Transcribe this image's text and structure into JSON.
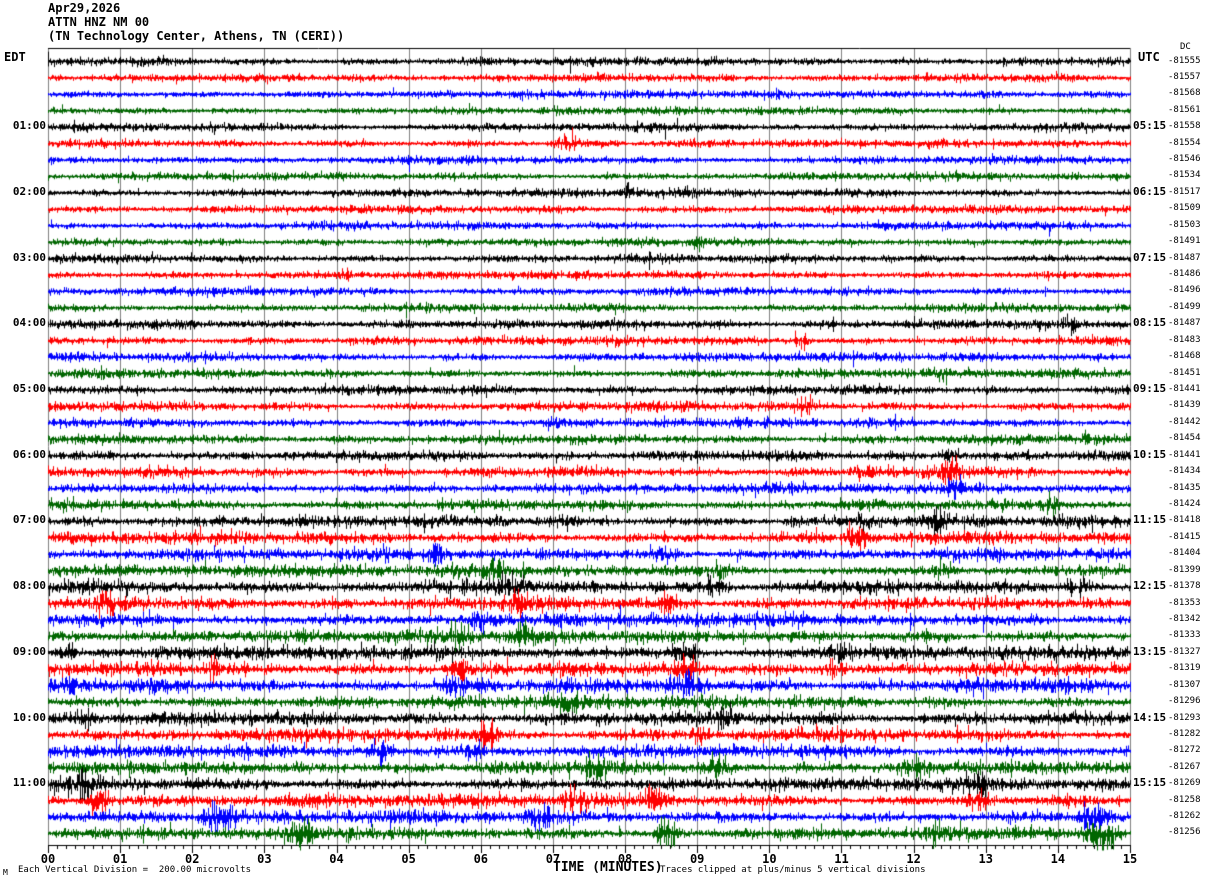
{
  "header": {
    "date": "Apr29,2026",
    "station": "ATTN HNZ NM 00",
    "location": "(TN Technology Center, Athens, TN (CERI))"
  },
  "footer": {
    "corner_mark": "M",
    "scale_note": "Each Vertical Division =  200.00 microvolts",
    "clip_note": "Traces clipped at plus/minus 5 vertical divisions"
  },
  "chart_data": {
    "type": "line",
    "subtype": "seismogram_helicorder",
    "title": "ATTN HNZ NM 00 helicorder record, Apr29,2026",
    "x_axis": {
      "label": "TIME (MINUTES)",
      "range": [
        0,
        15
      ],
      "major_tick_every_minutes": 1,
      "minor_divisions_per_minute": 8,
      "tick_labels": [
        "00",
        "01",
        "02",
        "03",
        "04",
        "05",
        "06",
        "07",
        "08",
        "09",
        "10",
        "11",
        "12",
        "13",
        "14",
        "15"
      ]
    },
    "y_axis_left": {
      "label": "EDT",
      "rows_per_hour": 4,
      "minutes_per_row": 15,
      "hour_labels": [
        "01:00",
        "02:00",
        "03:00",
        "04:00",
        "05:00",
        "06:00",
        "07:00",
        "08:00",
        "09:00",
        "10:00",
        "11:00"
      ]
    },
    "y_axis_right": {
      "label": "UTC",
      "dc_header": "DC",
      "hour_labels": [
        "05:15",
        "06:15",
        "07:15",
        "08:15",
        "09:15",
        "10:15",
        "11:15",
        "12:15",
        "13:15",
        "14:15",
        "15:15"
      ]
    },
    "grid": {
      "on": true,
      "color": "#808080",
      "border_color": "#000000"
    },
    "trace_color_cycle": [
      "#000000",
      "#ff0000",
      "#0000ff",
      "#006600"
    ],
    "microvolts_per_division": "200.00",
    "clip_divisions": 5,
    "rows": [
      {
        "edt": "",
        "utc": "",
        "dc": "-81555"
      },
      {
        "edt": "",
        "utc": "",
        "dc": "-81557"
      },
      {
        "edt": "",
        "utc": "",
        "dc": "-81568"
      },
      {
        "edt": "",
        "utc": "",
        "dc": "-81561"
      },
      {
        "edt": "01:00",
        "utc": "05:15",
        "dc": "-81558"
      },
      {
        "edt": "",
        "utc": "",
        "dc": "-81554"
      },
      {
        "edt": "",
        "utc": "",
        "dc": "-81546"
      },
      {
        "edt": "",
        "utc": "",
        "dc": "-81534"
      },
      {
        "edt": "02:00",
        "utc": "06:15",
        "dc": "-81517"
      },
      {
        "edt": "",
        "utc": "",
        "dc": "-81509"
      },
      {
        "edt": "",
        "utc": "",
        "dc": "-81503"
      },
      {
        "edt": "",
        "utc": "",
        "dc": "-81491"
      },
      {
        "edt": "03:00",
        "utc": "07:15",
        "dc": "-81487"
      },
      {
        "edt": "",
        "utc": "",
        "dc": "-81486"
      },
      {
        "edt": "",
        "utc": "",
        "dc": "-81496"
      },
      {
        "edt": "",
        "utc": "",
        "dc": "-81499"
      },
      {
        "edt": "04:00",
        "utc": "08:15",
        "dc": "-81487"
      },
      {
        "edt": "",
        "utc": "",
        "dc": "-81483"
      },
      {
        "edt": "",
        "utc": "",
        "dc": "-81468"
      },
      {
        "edt": "",
        "utc": "",
        "dc": "-81451"
      },
      {
        "edt": "05:00",
        "utc": "09:15",
        "dc": "-81441"
      },
      {
        "edt": "",
        "utc": "",
        "dc": "-81439"
      },
      {
        "edt": "",
        "utc": "",
        "dc": "-81442"
      },
      {
        "edt": "",
        "utc": "",
        "dc": "-81454"
      },
      {
        "edt": "06:00",
        "utc": "10:15",
        "dc": "-81441"
      },
      {
        "edt": "",
        "utc": "",
        "dc": "-81434"
      },
      {
        "edt": "",
        "utc": "",
        "dc": "-81435"
      },
      {
        "edt": "",
        "utc": "",
        "dc": "-81424"
      },
      {
        "edt": "07:00",
        "utc": "11:15",
        "dc": "-81418"
      },
      {
        "edt": "",
        "utc": "",
        "dc": "-81415"
      },
      {
        "edt": "",
        "utc": "",
        "dc": "-81404"
      },
      {
        "edt": "",
        "utc": "",
        "dc": "-81399"
      },
      {
        "edt": "08:00",
        "utc": "12:15",
        "dc": "-81378"
      },
      {
        "edt": "",
        "utc": "",
        "dc": "-81353"
      },
      {
        "edt": "",
        "utc": "",
        "dc": "-81342"
      },
      {
        "edt": "",
        "utc": "",
        "dc": "-81333"
      },
      {
        "edt": "09:00",
        "utc": "13:15",
        "dc": "-81327"
      },
      {
        "edt": "",
        "utc": "",
        "dc": "-81319"
      },
      {
        "edt": "",
        "utc": "",
        "dc": "-81307"
      },
      {
        "edt": "",
        "utc": "",
        "dc": "-81296"
      },
      {
        "edt": "10:00",
        "utc": "14:15",
        "dc": "-81293"
      },
      {
        "edt": "",
        "utc": "",
        "dc": "-81282"
      },
      {
        "edt": "",
        "utc": "",
        "dc": "-81272"
      },
      {
        "edt": "",
        "utc": "",
        "dc": "-81267"
      },
      {
        "edt": "11:00",
        "utc": "15:15",
        "dc": "-81269"
      },
      {
        "edt": "",
        "utc": "",
        "dc": "-81258"
      },
      {
        "edt": "",
        "utc": "",
        "dc": "-81262"
      },
      {
        "edt": "",
        "utc": "",
        "dc": "-81256"
      }
    ],
    "row_noise_amp": [
      3.0,
      2.9,
      2.9,
      2.8,
      2.9,
      2.9,
      2.8,
      2.8,
      3.0,
      3.0,
      2.9,
      2.9,
      3.1,
      3.0,
      3.0,
      3.0,
      3.3,
      3.3,
      3.2,
      3.3,
      3.4,
      3.5,
      3.4,
      3.4,
      3.7,
      3.8,
      3.8,
      3.8,
      4.3,
      4.3,
      4.4,
      4.5,
      4.9,
      4.9,
      4.9,
      4.9,
      5.1,
      5.1,
      5.1,
      5.0,
      4.9,
      4.9,
      4.9,
      4.9,
      4.8,
      4.8,
      4.7,
      4.7
    ],
    "noise_seed": 20260429,
    "events": [
      [
        6,
        7.2,
        11,
        0.12
      ],
      [
        9,
        8.05,
        6,
        0.08
      ],
      [
        12,
        9.0,
        5,
        0.1
      ],
      [
        14,
        4.15,
        6,
        0.07
      ],
      [
        17,
        14.2,
        6,
        0.1
      ],
      [
        18,
        10.45,
        7,
        0.1
      ],
      [
        20,
        12.4,
        5,
        0.1
      ],
      [
        22,
        10.5,
        7,
        0.1
      ],
      [
        23,
        7.0,
        5,
        0.1
      ],
      [
        25,
        12.5,
        6,
        0.12
      ],
      [
        26,
        11.3,
        8,
        0.12
      ],
      [
        26,
        12.5,
        11,
        0.15
      ],
      [
        27,
        12.55,
        8,
        0.12
      ],
      [
        28,
        13.9,
        7,
        0.12
      ],
      [
        29,
        11.35,
        9,
        0.12
      ],
      [
        29,
        12.35,
        10,
        0.12
      ],
      [
        30,
        11.2,
        11,
        0.15
      ],
      [
        31,
        5.4,
        8,
        0.12
      ],
      [
        31,
        8.5,
        8,
        0.2
      ],
      [
        32,
        6.2,
        11,
        0.15
      ],
      [
        32,
        9.3,
        7,
        0.12
      ],
      [
        32,
        12.4,
        8,
        0.12
      ],
      [
        33,
        6.45,
        9,
        0.15
      ],
      [
        33,
        9.25,
        8,
        0.15
      ],
      [
        33,
        14.3,
        9,
        0.15
      ],
      [
        34,
        0.8,
        9,
        0.15
      ],
      [
        34,
        6.5,
        9,
        0.12
      ],
      [
        34,
        8.6,
        8,
        0.12
      ],
      [
        35,
        6.0,
        7,
        0.12
      ],
      [
        36,
        5.7,
        9,
        0.15
      ],
      [
        36,
        6.6,
        11,
        0.12
      ],
      [
        37,
        0.3,
        7,
        0.1
      ],
      [
        37,
        8.8,
        8,
        0.15
      ],
      [
        37,
        10.9,
        9,
        0.15
      ],
      [
        38,
        2.3,
        8,
        0.12
      ],
      [
        38,
        5.7,
        8,
        0.12
      ],
      [
        38,
        8.85,
        9,
        0.15
      ],
      [
        38,
        10.9,
        8,
        0.12
      ],
      [
        39,
        0.3,
        7,
        0.08
      ],
      [
        39,
        5.6,
        8,
        0.15
      ],
      [
        39,
        8.9,
        9,
        0.2
      ],
      [
        40,
        7.2,
        9,
        0.15
      ],
      [
        41,
        0.5,
        7,
        0.12
      ],
      [
        41,
        9.35,
        9,
        0.15
      ],
      [
        42,
        6.1,
        10,
        0.15
      ],
      [
        42,
        9.0,
        8,
        0.12
      ],
      [
        43,
        4.6,
        9,
        0.15
      ],
      [
        43,
        5.9,
        8,
        0.12
      ],
      [
        44,
        7.6,
        9,
        0.15
      ],
      [
        44,
        9.3,
        8,
        0.12
      ],
      [
        44,
        12.0,
        8,
        0.12
      ],
      [
        45,
        0.45,
        11,
        0.2
      ],
      [
        45,
        12.9,
        9,
        0.15
      ],
      [
        46,
        0.7,
        12,
        0.15
      ],
      [
        46,
        7.3,
        9,
        0.15
      ],
      [
        46,
        8.4,
        9,
        0.12
      ],
      [
        46,
        12.9,
        10,
        0.15
      ],
      [
        47,
        2.35,
        12,
        0.2
      ],
      [
        47,
        6.8,
        8,
        0.15
      ],
      [
        47,
        14.5,
        12,
        0.18
      ],
      [
        48,
        3.5,
        11,
        0.15
      ],
      [
        48,
        8.6,
        11,
        0.15
      ],
      [
        48,
        12.3,
        9,
        0.15
      ],
      [
        48,
        14.6,
        12,
        0.2
      ]
    ]
  }
}
